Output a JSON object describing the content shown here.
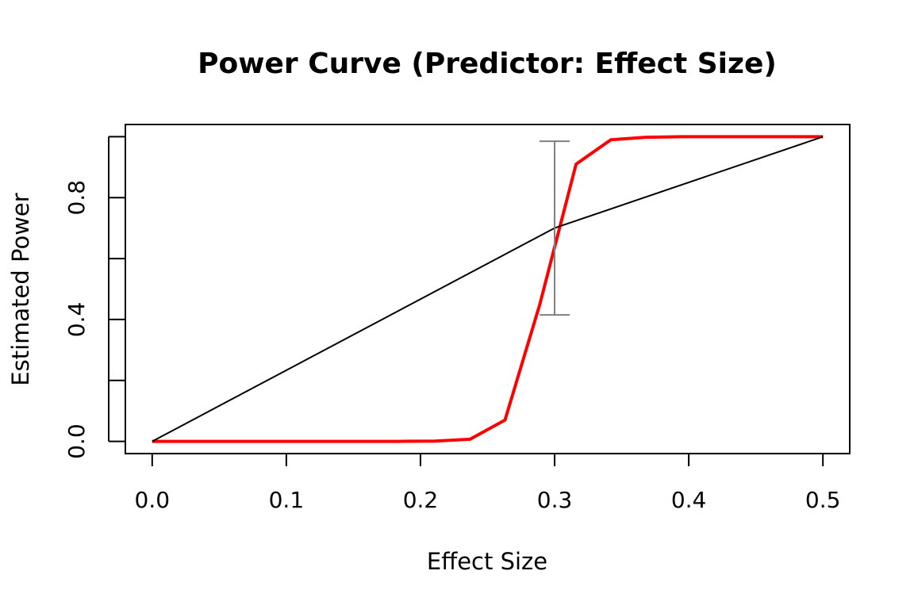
{
  "chart_data": {
    "type": "line",
    "title": "Power Curve (Predictor: Effect Size)",
    "xlabel": "Effect Size",
    "ylabel": "Estimated Power",
    "xlim": [
      -0.02,
      0.52
    ],
    "ylim": [
      -0.04,
      1.04
    ],
    "grid": false,
    "legend": "none",
    "x_ticks": [
      {
        "value": 0.0,
        "label": "0.0"
      },
      {
        "value": 0.1,
        "label": "0.1"
      },
      {
        "value": 0.2,
        "label": "0.2"
      },
      {
        "value": 0.3,
        "label": "0.3"
      },
      {
        "value": 0.4,
        "label": "0.4"
      },
      {
        "value": 0.5,
        "label": "0.5"
      }
    ],
    "y_ticks": [
      {
        "value": 0.0,
        "label": "0.0"
      },
      {
        "value": 0.2,
        "label": ""
      },
      {
        "value": 0.4,
        "label": "0.4"
      },
      {
        "value": 0.6,
        "label": ""
      },
      {
        "value": 0.8,
        "label": "0.8"
      },
      {
        "value": 1.0,
        "label": ""
      }
    ],
    "series": [
      {
        "color": "#ff0000",
        "style": "solid-thick",
        "x": [
          0.0,
          0.026,
          0.053,
          0.079,
          0.105,
          0.132,
          0.158,
          0.184,
          0.211,
          0.237,
          0.263,
          0.289,
          0.316,
          0.342,
          0.368,
          0.395,
          0.421,
          0.447,
          0.474,
          0.5
        ],
        "y": [
          0.0,
          0.0,
          0.0,
          0.0,
          0.0,
          0.0,
          0.0,
          0.0,
          0.001,
          0.007,
          0.07,
          0.45,
          0.91,
          0.99,
          0.998,
          1.0,
          1.0,
          1.0,
          1.0,
          1.0
        ]
      },
      {
        "color": "#000000",
        "style": "solid-thin",
        "x": [
          0.0,
          0.3,
          0.5
        ],
        "y": [
          0.0,
          0.7,
          1.0
        ]
      }
    ],
    "error_bars": [
      {
        "x": 0.3,
        "low": 0.415,
        "high": 0.985,
        "color": "#808080"
      }
    ]
  }
}
